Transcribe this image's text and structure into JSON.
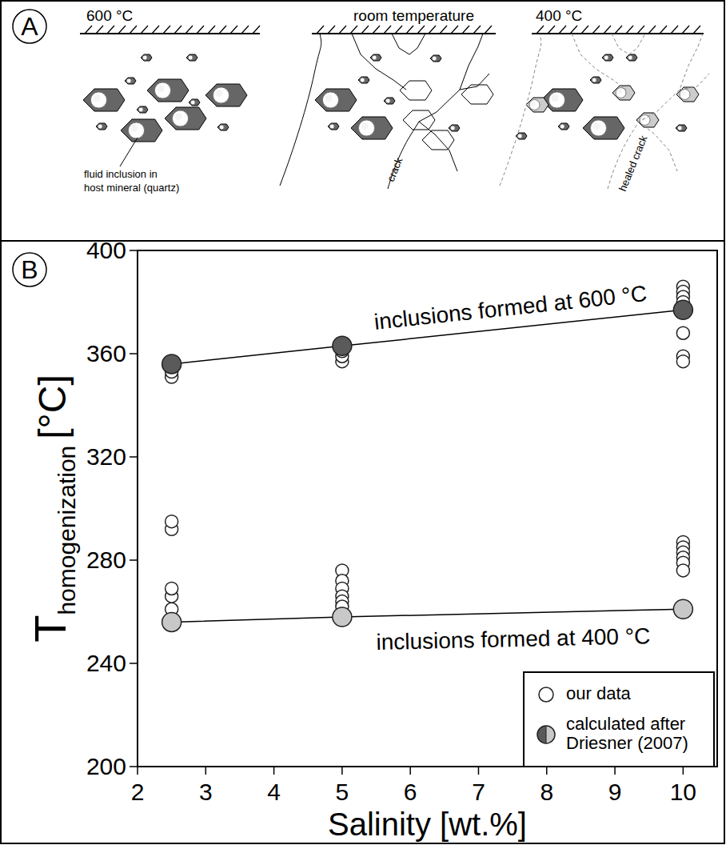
{
  "diagram": {
    "letter": "A",
    "scenes": [
      {
        "title": "600 °C",
        "annotation": [
          "fluid inclusion in",
          "host mineral (quartz)"
        ]
      },
      {
        "title": "room temperature",
        "annotation": [
          "crack"
        ]
      },
      {
        "title": "400 °C",
        "annotation": [
          "healed crack"
        ]
      }
    ]
  },
  "chart_data": {
    "type": "scatter",
    "letter": "B",
    "x_label": "Salinity [wt.%]",
    "y_label": "T",
    "y_label_subscript": "homogenization",
    "y_label_unit": "[°C]",
    "xlim": [
      2,
      10.5
    ],
    "xticks": [
      2,
      3,
      4,
      5,
      6,
      7,
      8,
      9,
      10
    ],
    "ylim": [
      200,
      400
    ],
    "yticks": [
      200,
      240,
      280,
      320,
      360,
      400
    ],
    "legend": "bottom-right",
    "series": [
      {
        "name": "our data",
        "type": "scatter",
        "marker": "circle",
        "color": "#ffffff",
        "x": [
          2.5,
          2.5,
          2.5,
          2.5,
          2.5,
          2.5,
          2.5,
          5,
          5,
          5,
          5,
          5,
          5,
          5,
          5,
          5,
          5,
          5,
          10,
          10,
          10,
          10,
          10,
          10,
          10,
          10,
          10,
          10,
          10,
          10,
          10,
          10
        ],
        "values": [
          351,
          353,
          261,
          266,
          269,
          292,
          295,
          357,
          359,
          361,
          362,
          276,
          272,
          269,
          266,
          264,
          262,
          257,
          386,
          384,
          382,
          380,
          378,
          368,
          359,
          357,
          287,
          285,
          283,
          281,
          279,
          276
        ]
      },
      {
        "name": "calculated after Driesner (2007)",
        "type": "line",
        "marker": "circle",
        "color": "#5a5a5a",
        "label": "inclusions formed at 600 °C",
        "x": [
          2.5,
          5,
          10
        ],
        "values": [
          356,
          363,
          377
        ]
      },
      {
        "type": "line",
        "marker": "circle",
        "color": "#c8c8c8",
        "label": "inclusions formed at 400 °C",
        "x": [
          2.5,
          5,
          10
        ],
        "values": [
          256,
          258,
          261
        ]
      }
    ]
  }
}
